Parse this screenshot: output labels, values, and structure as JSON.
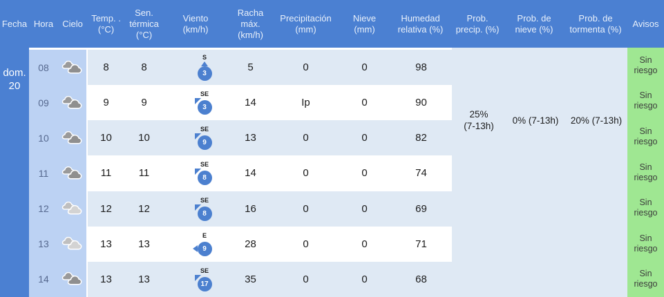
{
  "header": {
    "columns": [
      {
        "id": "fecha",
        "label": "Fecha"
      },
      {
        "id": "hora",
        "label": "Hora"
      },
      {
        "id": "cielo",
        "label": "Cielo"
      },
      {
        "id": "temperatura",
        "label": "Temp. .\n(°C)"
      },
      {
        "id": "sensacion-termica",
        "label": "Sen.\ntérmica\n(°C)"
      },
      {
        "id": "viento",
        "label": "Viento\n(km/h)"
      },
      {
        "id": "racha-maxima",
        "label": "Racha\nmáx.\n(km/h)"
      },
      {
        "id": "precipitacion",
        "label": "Precipitación\n(mm)"
      },
      {
        "id": "nieve",
        "label": "Nieve\n(mm)"
      },
      {
        "id": "humedad-relativa",
        "label": "Humedad\nrelativa (%)"
      },
      {
        "id": "prob-precipitacion",
        "label": "Prob.\nprecip. (%)"
      },
      {
        "id": "prob-nieve",
        "label": "Prob. de\nnieve (%)"
      },
      {
        "id": "prob-tormenta",
        "label": "Prob. de\ntormenta (%)"
      },
      {
        "id": "avisos",
        "label": "Avisos"
      }
    ]
  },
  "date": {
    "label": "dom.\n20"
  },
  "probabilities": {
    "precip": "25%\n(7-13h)",
    "snow": "0% (7-13h)",
    "storm": "20% (7-13h)"
  },
  "rows": [
    {
      "hour": "08",
      "sky": "dark",
      "sky_name": "muy-nuboso",
      "temp": "8",
      "feels": "8",
      "wind_dir": "S",
      "wind_speed": "3",
      "wind_arrow": "up",
      "gust": "5",
      "precip": "0",
      "snow": "0",
      "humidity": "98",
      "warning": "Sin\nriesgo"
    },
    {
      "hour": "09",
      "sky": "dark",
      "sky_name": "muy-nuboso",
      "temp": "9",
      "feels": "9",
      "wind_dir": "SE",
      "wind_speed": "3",
      "wind_arrow": "nw",
      "gust": "14",
      "precip": "Ip",
      "snow": "0",
      "humidity": "90",
      "warning": "Sin\nriesgo"
    },
    {
      "hour": "10",
      "sky": "dark",
      "sky_name": "muy-nuboso",
      "temp": "10",
      "feels": "10",
      "wind_dir": "SE",
      "wind_speed": "9",
      "wind_arrow": "nw",
      "gust": "13",
      "precip": "0",
      "snow": "0",
      "humidity": "82",
      "warning": "Sin\nriesgo"
    },
    {
      "hour": "11",
      "sky": "dark",
      "sky_name": "muy-nuboso",
      "temp": "11",
      "feels": "11",
      "wind_dir": "SE",
      "wind_speed": "8",
      "wind_arrow": "nw",
      "gust": "14",
      "precip": "0",
      "snow": "0",
      "humidity": "74",
      "warning": "Sin\nriesgo"
    },
    {
      "hour": "12",
      "sky": "light",
      "sky_name": "nuboso",
      "temp": "12",
      "feels": "12",
      "wind_dir": "SE",
      "wind_speed": "8",
      "wind_arrow": "nw",
      "gust": "16",
      "precip": "0",
      "snow": "0",
      "humidity": "69",
      "warning": "Sin\nriesgo"
    },
    {
      "hour": "13",
      "sky": "light",
      "sky_name": "nuboso",
      "temp": "13",
      "feels": "13",
      "wind_dir": "E",
      "wind_speed": "9",
      "wind_arrow": "left",
      "gust": "28",
      "precip": "0",
      "snow": "0",
      "humidity": "71",
      "warning": "Sin\nriesgo"
    },
    {
      "hour": "14",
      "sky": "dark",
      "sky_name": "muy-nuboso",
      "temp": "13",
      "feels": "13",
      "wind_dir": "SE",
      "wind_speed": "17",
      "wind_arrow": "nw",
      "gust": "35",
      "precip": "0",
      "snow": "0",
      "humidity": "68",
      "warning": "Sin\nriesgo"
    }
  ],
  "colors": {
    "header_blue": "#4b80d2",
    "hour_column_blue": "#bcd2f3",
    "row_alt_blue": "#dfe9f4",
    "warning_green": "#9fe792",
    "wind_badge_blue": "#4c80cf"
  }
}
